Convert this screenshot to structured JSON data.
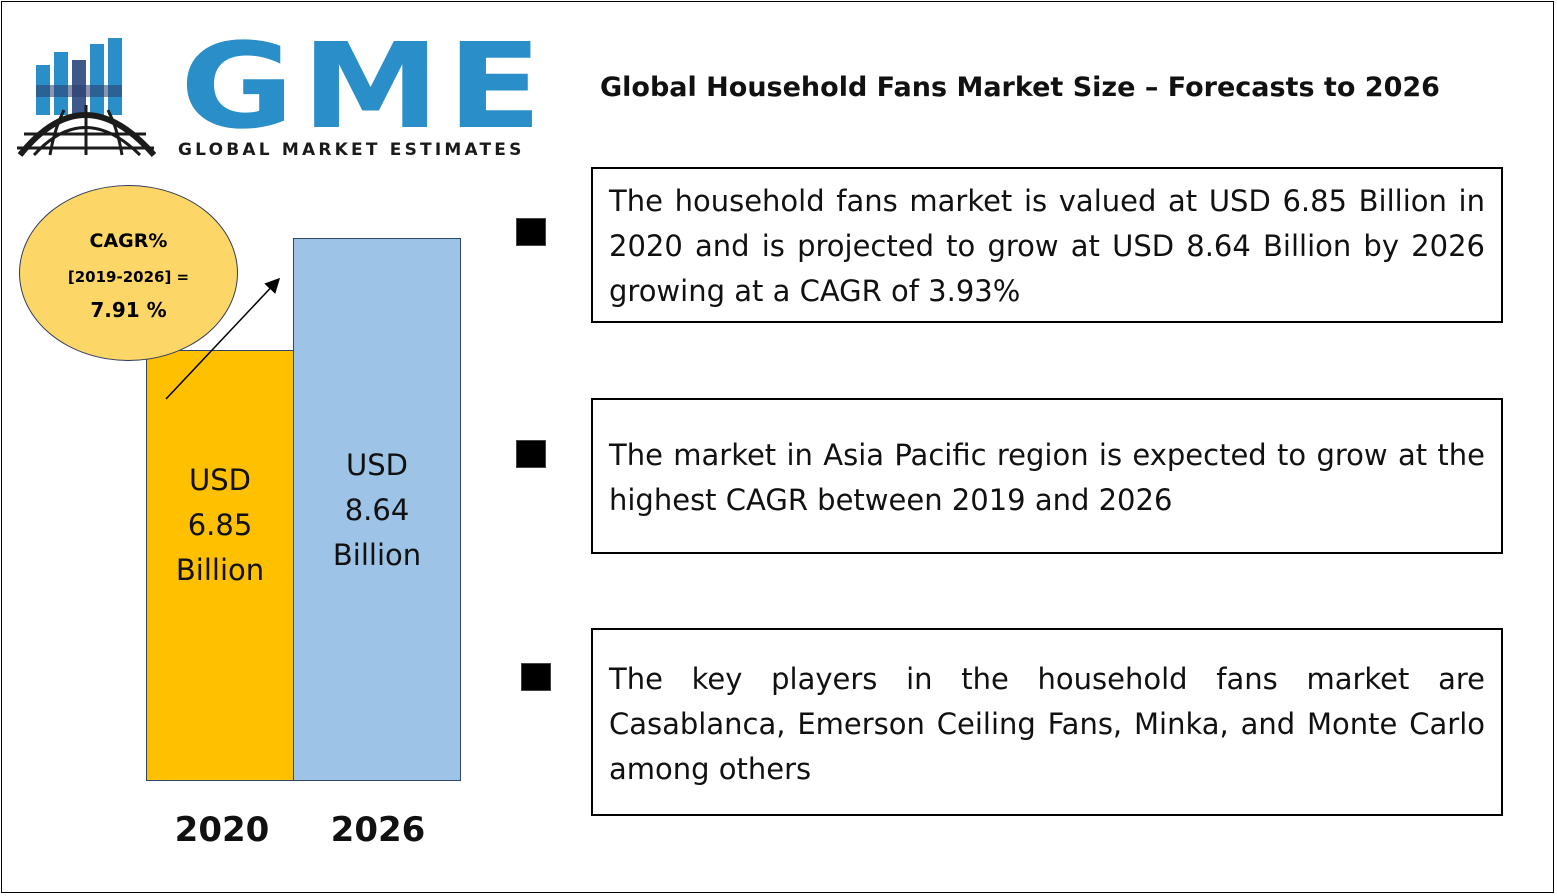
{
  "logo": {
    "letters": "GME",
    "tagline": "GLOBAL MARKET ESTIMATES",
    "brand_color": "#2a8fc9"
  },
  "title": "Global Household Fans Market Size – Forecasts to 2026",
  "cagr_badge": {
    "label": "CAGR%",
    "period": "[2019-2026] =",
    "value": "7.91 %",
    "color": "#fcd667"
  },
  "highlights": [
    "The household fans market is valued at USD 6.85 Billion in 2020 and is projected to grow at USD 8.64 Billion by 2026 growing at a CAGR of 3.93%",
    "The market in Asia Pacific region is expected to grow at the highest CAGR between 2019 and 2026",
    "The key players in the household fans market are Casablanca, Emerson Ceiling Fans, Minka, and Monte Carlo among others"
  ],
  "chart_data": {
    "type": "bar",
    "categories": [
      "2020",
      "2026"
    ],
    "values": [
      6.85,
      8.64
    ],
    "unit": "USD Billion",
    "data_labels": [
      [
        "USD",
        "6.85",
        "Billion"
      ],
      [
        "USD",
        "8.64",
        "Billion"
      ]
    ],
    "colors": [
      "#ffc000",
      "#9dc3e6"
    ],
    "ylim": [
      0,
      8.64
    ],
    "grid": false,
    "legend": "none"
  }
}
